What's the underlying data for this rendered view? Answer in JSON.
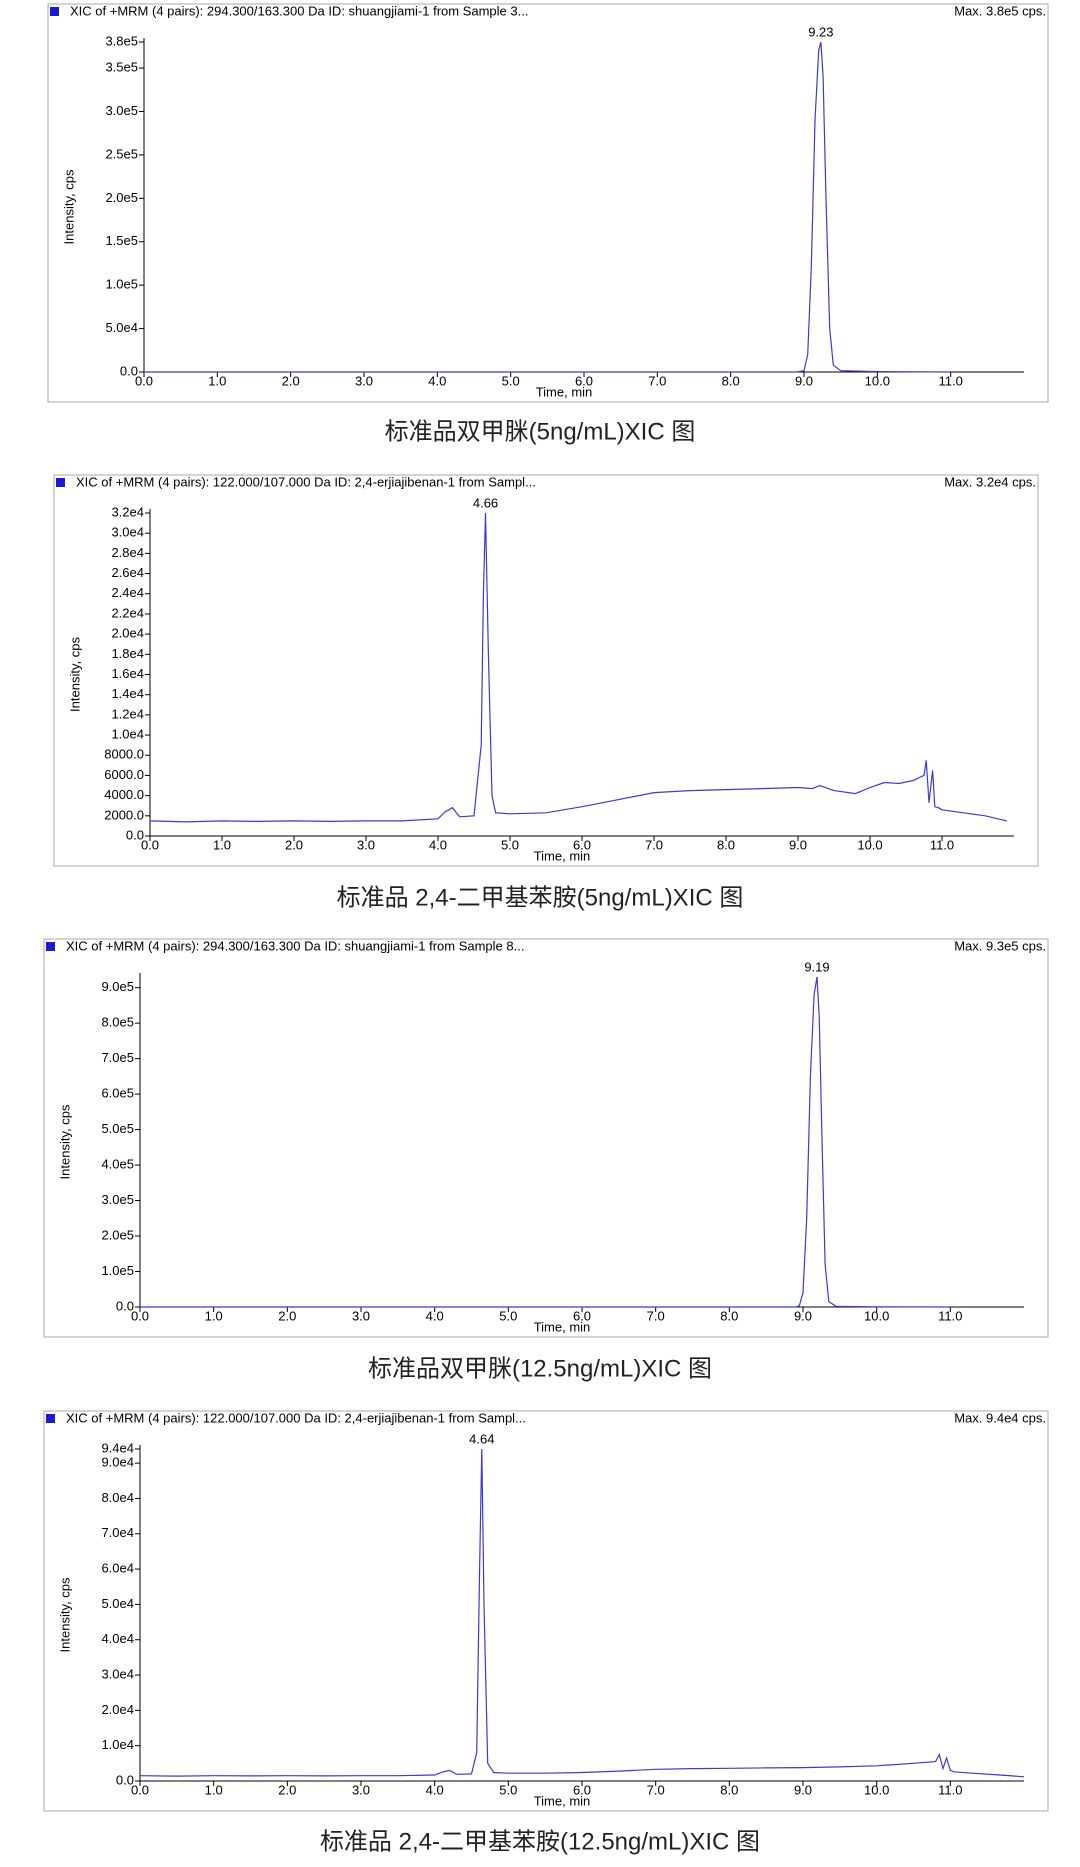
{
  "chart_data": [
    {
      "type": "line",
      "title": "标准品双甲脒(5ng/mL)XIC 图",
      "subtitle": "XIC of +MRM (4 pairs): 294.300/163.300 Da ID: shuangjiami-1 from Sample 3...",
      "annotation": "Max. 3.8e5 cps.",
      "x_label": "Time, min",
      "y_label": "Intensity, cps",
      "peak": {
        "x": 9.23,
        "y": 380000
      },
      "color": "#3a3ad6",
      "xlim": [
        0,
        12
      ],
      "ylim": [
        0,
        380000
      ],
      "xticks": [
        {
          "value": 0,
          "label": "0.0"
        },
        {
          "value": 1,
          "label": "1.0"
        },
        {
          "value": 2,
          "label": "2.0"
        },
        {
          "value": 3,
          "label": "3.0"
        },
        {
          "value": 4,
          "label": "4.0"
        },
        {
          "value": 5,
          "label": "5.0"
        },
        {
          "value": 6,
          "label": "6.0"
        },
        {
          "value": 7,
          "label": "7.0"
        },
        {
          "value": 8,
          "label": "8.0"
        },
        {
          "value": 9,
          "label": "9.0"
        },
        {
          "value": 10,
          "label": "10.0"
        },
        {
          "value": 11,
          "label": "11.0"
        }
      ],
      "yticks": [
        {
          "value": 0,
          "label": "0.0"
        },
        {
          "value": 50000,
          "label": "5.0e4"
        },
        {
          "value": 100000,
          "label": "1.0e5"
        },
        {
          "value": 150000,
          "label": "1.5e5"
        },
        {
          "value": 200000,
          "label": "2.0e5"
        },
        {
          "value": 250000,
          "label": "2.5e5"
        },
        {
          "value": 300000,
          "label": "3.0e5"
        },
        {
          "value": 350000,
          "label": "3.5e5"
        },
        {
          "value": 380000,
          "label": "3.8e5"
        }
      ],
      "x": [
        0,
        1,
        2,
        3,
        4,
        5,
        6,
        7,
        8,
        8.9,
        9.0,
        9.05,
        9.1,
        9.15,
        9.2,
        9.23,
        9.26,
        9.3,
        9.35,
        9.4,
        9.5,
        10,
        11
      ],
      "values": [
        0,
        0,
        0,
        0,
        0,
        0,
        0,
        0,
        0,
        0,
        1500,
        20000,
        120000,
        290000,
        370000,
        380000,
        340000,
        200000,
        50000,
        8000,
        1500,
        500,
        0
      ]
    },
    {
      "type": "line",
      "title": "标准品 2,4-二甲基苯胺(5ng/mL)XIC 图",
      "subtitle": "XIC of +MRM (4 pairs): 122.000/107.000 Da ID: 2,4-erjiajibenan-1 from Sampl...",
      "annotation": "Max. 3.2e4 cps.",
      "x_label": "Time, min",
      "y_label": "Intensity, cps",
      "peak": {
        "x": 4.66,
        "y": 32000
      },
      "color": "#3a3ad6",
      "xlim": [
        0,
        12
      ],
      "ylim": [
        0,
        32000
      ],
      "xticks": [
        {
          "value": 0,
          "label": "0.0"
        },
        {
          "value": 1,
          "label": "1.0"
        },
        {
          "value": 2,
          "label": "2.0"
        },
        {
          "value": 3,
          "label": "3.0"
        },
        {
          "value": 4,
          "label": "4.0"
        },
        {
          "value": 5,
          "label": "5.0"
        },
        {
          "value": 6,
          "label": "6.0"
        },
        {
          "value": 7,
          "label": "7.0"
        },
        {
          "value": 8,
          "label": "8.0"
        },
        {
          "value": 9,
          "label": "9.0"
        },
        {
          "value": 10,
          "label": "10.0"
        },
        {
          "value": 11,
          "label": "11.0"
        }
      ],
      "yticks": [
        {
          "value": 0,
          "label": "0.0"
        },
        {
          "value": 2000,
          "label": "2000.0"
        },
        {
          "value": 4000,
          "label": "4000.0"
        },
        {
          "value": 6000,
          "label": "6000.0"
        },
        {
          "value": 8000,
          "label": "8000.0"
        },
        {
          "value": 10000,
          "label": "1.0e4"
        },
        {
          "value": 12000,
          "label": "1.2e4"
        },
        {
          "value": 14000,
          "label": "1.4e4"
        },
        {
          "value": 16000,
          "label": "1.6e4"
        },
        {
          "value": 18000,
          "label": "1.8e4"
        },
        {
          "value": 20000,
          "label": "2.0e4"
        },
        {
          "value": 22000,
          "label": "2.2e4"
        },
        {
          "value": 24000,
          "label": "2.4e4"
        },
        {
          "value": 26000,
          "label": "2.6e4"
        },
        {
          "value": 28000,
          "label": "2.8e4"
        },
        {
          "value": 30000,
          "label": "3.0e4"
        },
        {
          "value": 32000,
          "label": "3.2e4"
        }
      ],
      "x": [
        0,
        0.5,
        1,
        1.5,
        2,
        2.5,
        3,
        3.5,
        4,
        4.1,
        4.2,
        4.3,
        4.5,
        4.6,
        4.63,
        4.66,
        4.7,
        4.75,
        4.8,
        5,
        5.5,
        6,
        6.5,
        7,
        7.5,
        8,
        8.5,
        9,
        9.2,
        9.3,
        9.5,
        9.8,
        10,
        10.2,
        10.4,
        10.6,
        10.75,
        10.78,
        10.82,
        10.87,
        10.9,
        10.95,
        11,
        11.3,
        11.6,
        11.9
      ],
      "values": [
        1500,
        1400,
        1500,
        1450,
        1500,
        1450,
        1500,
        1500,
        1700,
        2400,
        2800,
        1900,
        2000,
        9000,
        24000,
        32000,
        18000,
        4000,
        2300,
        2200,
        2300,
        2900,
        3600,
        4300,
        4500,
        4600,
        4700,
        4800,
        4700,
        5000,
        4500,
        4200,
        4800,
        5300,
        5200,
        5500,
        6000,
        7500,
        3300,
        6500,
        2900,
        2800,
        2600,
        2300,
        2000,
        1500
      ]
    },
    {
      "type": "line",
      "title": "标准品双甲脒(12.5ng/mL)XIC 图",
      "subtitle": "XIC of +MRM (4 pairs): 294.300/163.300 Da ID: shuangjiami-1 from Sample 8...",
      "annotation": "Max. 9.3e5 cps.",
      "x_label": "Time, min",
      "y_label": "Intensity, cps",
      "peak": {
        "x": 9.19,
        "y": 930000
      },
      "color": "#3a3ad6",
      "xlim": [
        0,
        12
      ],
      "ylim": [
        0,
        930000
      ],
      "xticks": [
        {
          "value": 0,
          "label": "0.0"
        },
        {
          "value": 1,
          "label": "1.0"
        },
        {
          "value": 2,
          "label": "2.0"
        },
        {
          "value": 3,
          "label": "3.0"
        },
        {
          "value": 4,
          "label": "4.0"
        },
        {
          "value": 5,
          "label": "5.0"
        },
        {
          "value": 6,
          "label": "6.0"
        },
        {
          "value": 7,
          "label": "7.0"
        },
        {
          "value": 8,
          "label": "8.0"
        },
        {
          "value": 9,
          "label": "9.0"
        },
        {
          "value": 10,
          "label": "10.0"
        },
        {
          "value": 11,
          "label": "11.0"
        }
      ],
      "yticks": [
        {
          "value": 0,
          "label": "0.0"
        },
        {
          "value": 100000,
          "label": "1.0e5"
        },
        {
          "value": 200000,
          "label": "2.0e5"
        },
        {
          "value": 300000,
          "label": "3.0e5"
        },
        {
          "value": 400000,
          "label": "4.0e5"
        },
        {
          "value": 500000,
          "label": "5.0e5"
        },
        {
          "value": 600000,
          "label": "6.0e5"
        },
        {
          "value": 700000,
          "label": "7.0e5"
        },
        {
          "value": 800000,
          "label": "8.0e5"
        },
        {
          "value": 900000,
          "label": "9.0e5"
        }
      ],
      "x": [
        0,
        1,
        2,
        3,
        4,
        5,
        6,
        7,
        8,
        8.9,
        8.95,
        9.0,
        9.05,
        9.1,
        9.15,
        9.19,
        9.22,
        9.26,
        9.3,
        9.35,
        9.45,
        10,
        11
      ],
      "values": [
        0,
        0,
        0,
        0,
        0,
        0,
        0,
        0,
        0,
        0,
        3000,
        40000,
        250000,
        650000,
        880000,
        930000,
        820000,
        450000,
        120000,
        15000,
        2000,
        500,
        0
      ]
    },
    {
      "type": "line",
      "title": "标准品 2,4-二甲基苯胺(12.5ng/mL)XIC 图",
      "subtitle": "XIC of +MRM (4 pairs): 122.000/107.000 Da ID: 2,4-erjiajibenan-1 from Sampl...",
      "annotation": "Max. 9.4e4 cps.",
      "x_label": "Time, min",
      "y_label": "Intensity, cps",
      "peak": {
        "x": 4.64,
        "y": 94000
      },
      "color": "#3a3ad6",
      "xlim": [
        0,
        12
      ],
      "ylim": [
        0,
        94000
      ],
      "xticks": [
        {
          "value": 0,
          "label": "0.0"
        },
        {
          "value": 1,
          "label": "1.0"
        },
        {
          "value": 2,
          "label": "2.0"
        },
        {
          "value": 3,
          "label": "3.0"
        },
        {
          "value": 4,
          "label": "4.0"
        },
        {
          "value": 5,
          "label": "5.0"
        },
        {
          "value": 6,
          "label": "6.0"
        },
        {
          "value": 7,
          "label": "7.0"
        },
        {
          "value": 8,
          "label": "8.0"
        },
        {
          "value": 9,
          "label": "9.0"
        },
        {
          "value": 10,
          "label": "10.0"
        },
        {
          "value": 11,
          "label": "11.0"
        }
      ],
      "yticks": [
        {
          "value": 0,
          "label": "0.0"
        },
        {
          "value": 10000,
          "label": "1.0e4"
        },
        {
          "value": 20000,
          "label": "2.0e4"
        },
        {
          "value": 30000,
          "label": "3.0e4"
        },
        {
          "value": 40000,
          "label": "4.0e4"
        },
        {
          "value": 50000,
          "label": "5.0e4"
        },
        {
          "value": 60000,
          "label": "6.0e4"
        },
        {
          "value": 70000,
          "label": "7.0e4"
        },
        {
          "value": 80000,
          "label": "8.0e4"
        },
        {
          "value": 90000,
          "label": "9.0e4"
        },
        {
          "value": 94000,
          "label": "9.4e4"
        }
      ],
      "x": [
        0,
        0.5,
        1,
        1.5,
        2,
        2.5,
        3,
        3.5,
        4,
        4.1,
        4.2,
        4.3,
        4.5,
        4.57,
        4.61,
        4.64,
        4.67,
        4.72,
        4.8,
        5,
        5.5,
        6,
        6.5,
        7,
        7.5,
        8,
        8.5,
        9,
        9.5,
        10,
        10.5,
        10.8,
        10.85,
        10.9,
        10.95,
        11,
        11.05,
        11.3,
        11.6,
        12
      ],
      "values": [
        1500,
        1400,
        1500,
        1450,
        1500,
        1450,
        1500,
        1500,
        1700,
        2500,
        3000,
        1900,
        2000,
        8000,
        60000,
        94000,
        50000,
        5000,
        2400,
        2200,
        2200,
        2400,
        2800,
        3300,
        3500,
        3600,
        3700,
        3800,
        4000,
        4300,
        5000,
        5500,
        7500,
        3500,
        6500,
        3000,
        2600,
        2200,
        1800,
        1200
      ]
    }
  ]
}
